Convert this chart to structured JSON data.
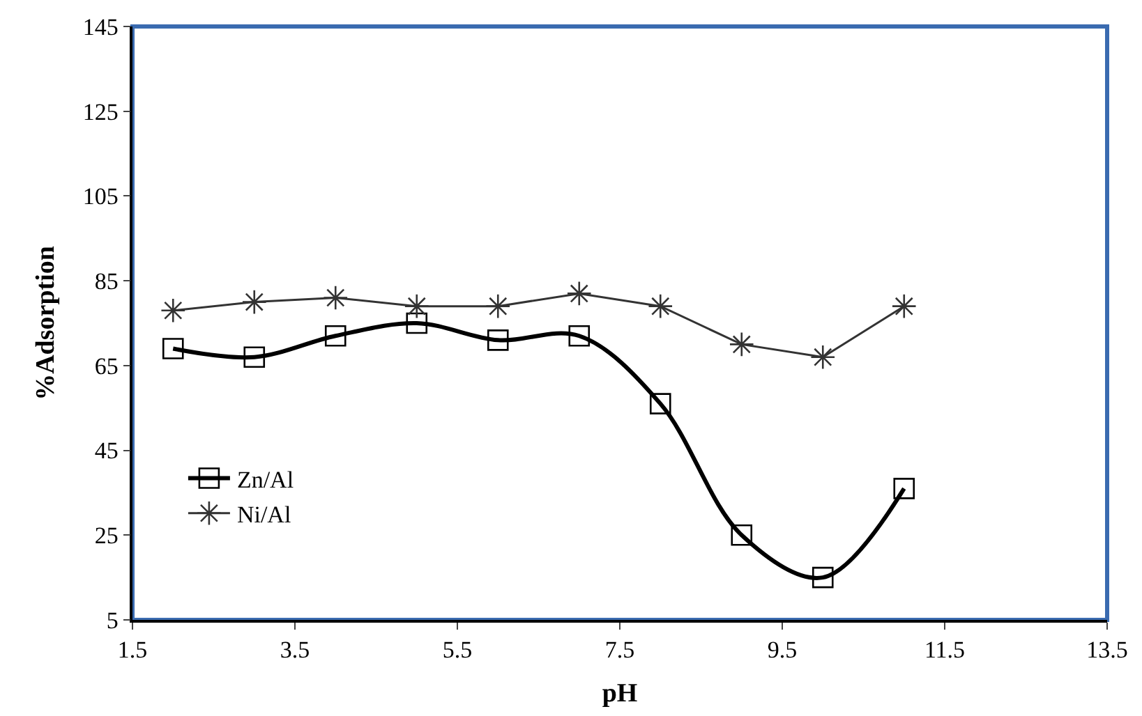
{
  "chart_data": {
    "type": "line",
    "xlabel": "pH",
    "ylabel": "%Adsorption",
    "x": [
      2,
      3,
      4,
      5,
      6,
      7,
      8,
      9,
      10,
      11
    ],
    "series": [
      {
        "name": "Zn/Al",
        "color": "#000000",
        "marker": "square",
        "values": [
          69,
          67,
          72,
          75,
          71,
          72,
          56,
          25,
          15,
          36
        ]
      },
      {
        "name": "Ni/Al",
        "color": "#333333",
        "marker": "cross",
        "values": [
          78,
          80,
          81,
          79,
          79,
          82,
          79,
          70,
          67,
          79
        ]
      }
    ],
    "xlim": [
      1.5,
      13.5
    ],
    "xticks": [
      1.5,
      3.5,
      5.5,
      7.5,
      9.5,
      11.5,
      13.5
    ],
    "ylim": [
      5,
      145
    ],
    "yticks": [
      5,
      25,
      45,
      65,
      85,
      105,
      125,
      145
    ],
    "grid": false,
    "legend": "bottom left"
  }
}
